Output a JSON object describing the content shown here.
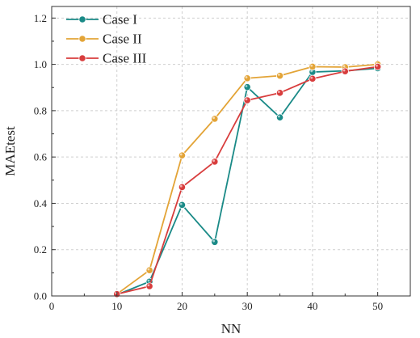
{
  "chart_data": {
    "type": "line",
    "xlabel": "NN",
    "ylabel": "MAEtest",
    "xlim": [
      0,
      55
    ],
    "ylim": [
      0,
      1.25
    ],
    "xticks": [
      0,
      10,
      20,
      30,
      40,
      50
    ],
    "yticks": [
      0.0,
      0.2,
      0.4,
      0.6,
      0.8,
      1.0,
      1.2
    ],
    "ytick_labels": [
      "0.0",
      "0.2",
      "0.4",
      "0.6",
      "0.8",
      "1.0",
      "1.2"
    ],
    "grid": true,
    "legend_position": "top-left",
    "x": [
      10,
      15,
      20,
      25,
      30,
      35,
      40,
      45,
      50
    ],
    "series": [
      {
        "name": "Case I",
        "color": "#1a8a87",
        "values": [
          0.005,
          0.062,
          0.393,
          0.233,
          0.902,
          0.771,
          0.967,
          0.972,
          0.983
        ]
      },
      {
        "name": "Case II",
        "color": "#e3a437",
        "values": [
          0.008,
          0.111,
          0.607,
          0.765,
          0.94,
          0.951,
          0.99,
          0.988,
          1.0
        ]
      },
      {
        "name": "Case III",
        "color": "#d83d3d",
        "values": [
          0.008,
          0.042,
          0.47,
          0.58,
          0.845,
          0.877,
          0.938,
          0.97,
          0.99
        ]
      }
    ]
  }
}
